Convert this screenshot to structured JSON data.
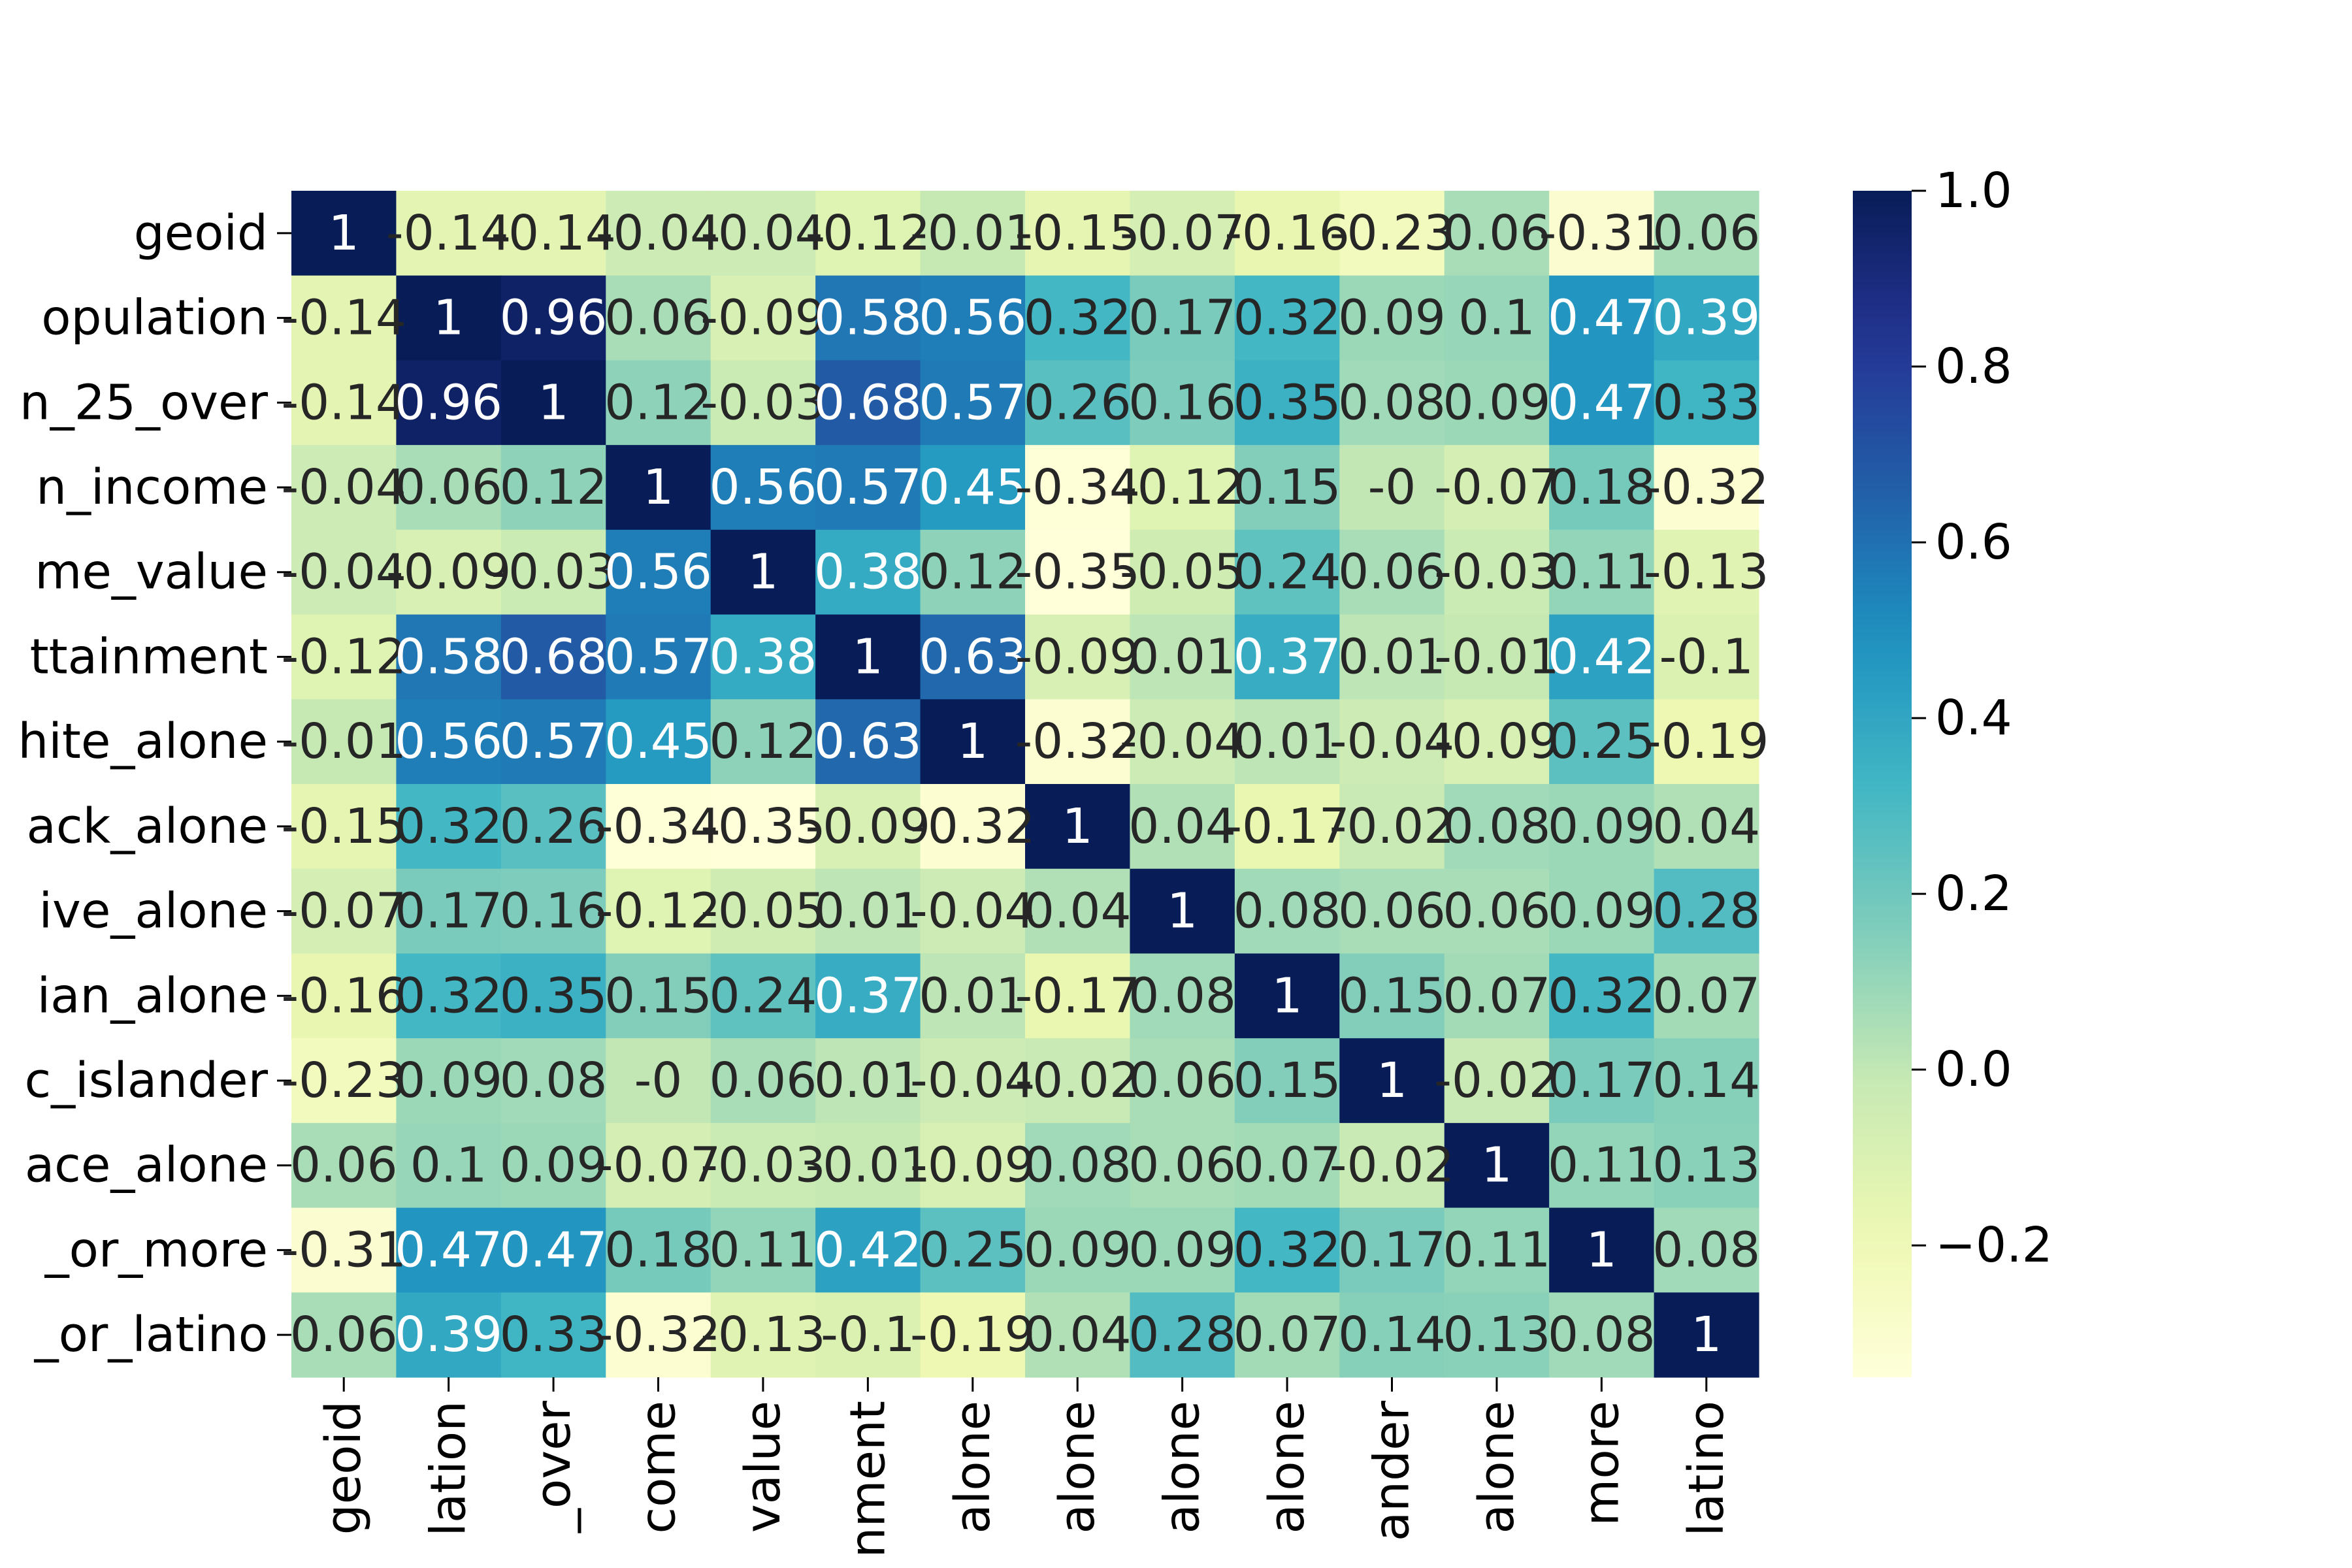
{
  "chart_data": {
    "type": "heatmap",
    "title": "",
    "xlabel": "",
    "ylabel": "",
    "row_labels": [
      "geoid",
      "opulation",
      "n_25_over",
      "n_income",
      "me_value",
      "ttainment",
      "hite_alone",
      "ack_alone",
      "ive_alone",
      "ian_alone",
      "c_islander",
      "ace_alone",
      "_or_more",
      "_or_latino"
    ],
    "col_labels": [
      "geoid",
      "lation",
      "_over",
      "come",
      "value",
      "nment",
      "alone",
      "alone",
      "alone",
      "alone",
      "ander",
      "alone",
      "more",
      "latino"
    ],
    "values": [
      [
        1,
        -0.14,
        -0.14,
        -0.04,
        -0.04,
        -0.12,
        -0.01,
        -0.15,
        -0.07,
        -0.16,
        -0.23,
        0.06,
        -0.31,
        0.06
      ],
      [
        -0.14,
        1,
        0.96,
        0.06,
        -0.09,
        0.58,
        0.56,
        0.32,
        0.17,
        0.32,
        0.09,
        0.1,
        0.47,
        0.39
      ],
      [
        -0.14,
        0.96,
        1,
        0.12,
        -0.03,
        0.68,
        0.57,
        0.26,
        0.16,
        0.35,
        0.08,
        0.09,
        0.47,
        0.33
      ],
      [
        -0.04,
        0.06,
        0.12,
        1,
        0.56,
        0.57,
        0.45,
        -0.34,
        -0.12,
        0.15,
        -0.0,
        -0.07,
        0.18,
        -0.32
      ],
      [
        -0.04,
        -0.09,
        -0.03,
        0.56,
        1,
        0.38,
        0.12,
        -0.35,
        -0.05,
        0.24,
        0.06,
        -0.03,
        0.11,
        -0.13
      ],
      [
        -0.12,
        0.58,
        0.68,
        0.57,
        0.38,
        1,
        0.63,
        -0.09,
        0.01,
        0.37,
        0.01,
        -0.01,
        0.42,
        -0.1
      ],
      [
        -0.01,
        0.56,
        0.57,
        0.45,
        0.12,
        0.63,
        1,
        -0.32,
        -0.04,
        0.01,
        -0.04,
        -0.09,
        0.25,
        -0.19
      ],
      [
        -0.15,
        0.32,
        0.26,
        -0.34,
        -0.35,
        -0.09,
        -0.32,
        1,
        0.04,
        -0.17,
        -0.02,
        0.08,
        0.09,
        0.04
      ],
      [
        -0.07,
        0.17,
        0.16,
        -0.12,
        -0.05,
        0.01,
        -0.04,
        0.04,
        1,
        0.08,
        0.06,
        0.06,
        0.09,
        0.28
      ],
      [
        -0.16,
        0.32,
        0.35,
        0.15,
        0.24,
        0.37,
        0.01,
        -0.17,
        0.08,
        1,
        0.15,
        0.07,
        0.32,
        0.07
      ],
      [
        -0.23,
        0.09,
        0.08,
        -0.0,
        0.06,
        0.01,
        -0.04,
        -0.02,
        0.06,
        0.15,
        1,
        -0.02,
        0.17,
        0.14
      ],
      [
        0.06,
        0.1,
        0.09,
        -0.07,
        -0.03,
        -0.01,
        -0.09,
        0.08,
        0.06,
        0.07,
        -0.02,
        1,
        0.11,
        0.13
      ],
      [
        -0.31,
        0.47,
        0.47,
        0.18,
        0.11,
        0.42,
        0.25,
        0.09,
        0.09,
        0.32,
        0.17,
        0.11,
        1,
        0.08
      ],
      [
        0.06,
        0.39,
        0.33,
        -0.32,
        -0.13,
        -0.1,
        -0.19,
        0.04,
        0.28,
        0.07,
        0.14,
        0.13,
        0.08,
        1
      ]
    ],
    "value_range": [
      -0.35,
      1.0
    ],
    "colormap": "YlGnBu",
    "colorbar": {
      "ticks": [
        1.0,
        0.8,
        0.6,
        0.4,
        0.2,
        0.0,
        -0.2
      ],
      "tick_labels": [
        "1.0",
        "0.8",
        "0.6",
        "0.4",
        "0.2",
        "0.0",
        "−0.2"
      ]
    },
    "annotations": true,
    "grid": false,
    "legend": "colorbar-right"
  }
}
